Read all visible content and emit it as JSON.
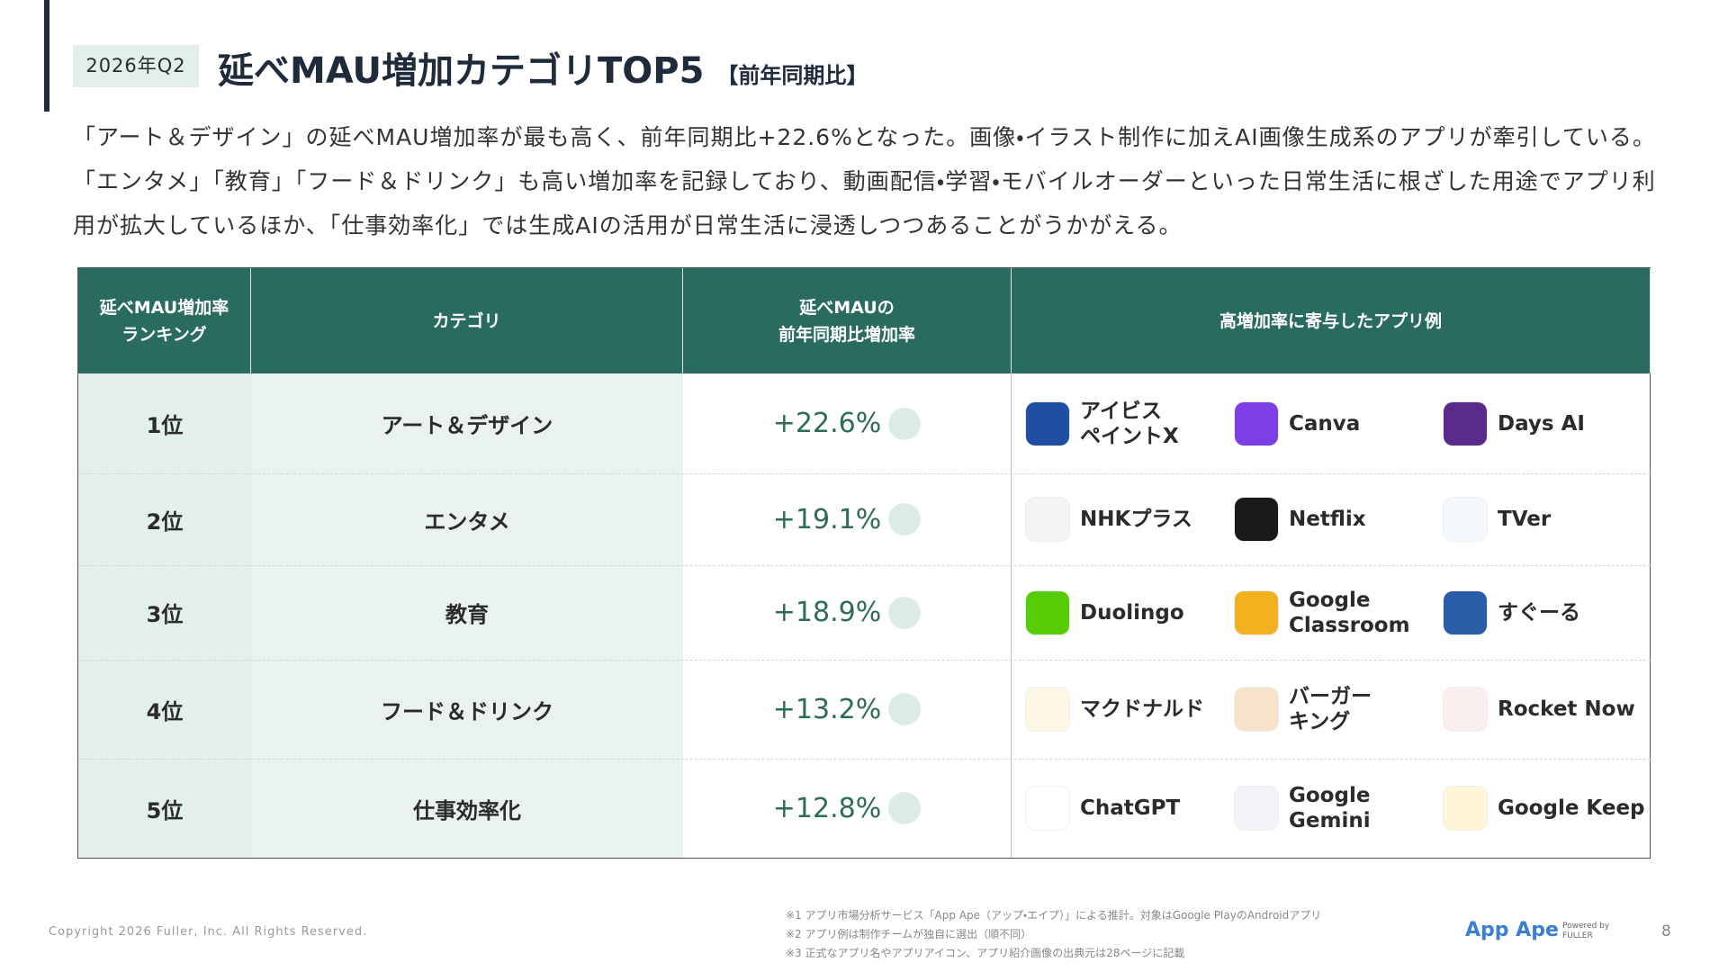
{
  "header": {
    "badge": "2026年Q2",
    "title": "延べMAU増加カテゴリTOP5",
    "suffix": "【前年同期比】"
  },
  "summary": "「アート＆デザイン」の延べMAU増加率が最も高く、前年同期比+22.6%となった。画像・イラスト制作に加えAI画像生成系のアプリが牽引している。「エンタメ」「教育」「フード＆ドリンク」も高い増加率を記録しており、動画配信・学習・モバイルオーダーといった日常生活に根ざした用途でアプリ利用が拡大しているほか、「仕事効率化」では生成AIの活用が日常生活に浸透しつつあることがうかがえる。",
  "table": {
    "headers": [
      "延べMAU増加率\nランキング",
      "カテゴリ",
      "延べMAUの\n前年同期比増加率",
      "高増加率に寄与したアプリ例"
    ],
    "rows": [
      {
        "rank": "1位",
        "category": "アート＆デザイン",
        "rate": "+22.6%",
        "apps": [
          "アイビス\nペイントX",
          "Canva",
          "Days AI"
        ]
      },
      {
        "rank": "2位",
        "category": "エンタメ",
        "rate": "+19.1%",
        "apps": [
          "NHKプラス",
          "Netflix",
          "TVer"
        ]
      },
      {
        "rank": "3位",
        "category": "教育",
        "rate": "+18.9%",
        "apps": [
          "Duolingo",
          "Google\nClassroom",
          "すぐーる"
        ]
      },
      {
        "rank": "4位",
        "category": "フード＆ドリンク",
        "rate": "+13.2%",
        "apps": [
          "マクドナルド",
          "バーガー\nキング",
          "Rocket Now"
        ]
      },
      {
        "rank": "5位",
        "category": "仕事効率化",
        "rate": "+12.8%",
        "apps": [
          "ChatGPT",
          "Google\nGemini",
          "Google Keep"
        ]
      }
    ]
  },
  "footer": {
    "copyright": "Copyright 2026 Fuller, Inc. All Rights Reserved.",
    "notes": [
      "※1 アプリ市場分析サービス「App Ape（アップ・エイプ）」による推計。対象はGoogle PlayのAndroidアプリ",
      "※2 アプリ例は制作チームが独自に選出（順不同）",
      "※3 正式なアプリ名やアプリアイコン、アプリ紹介画像の出典元は28ページに記載"
    ],
    "logo": "App Ape",
    "powered": "Powered by FULLER",
    "page": "8"
  }
}
